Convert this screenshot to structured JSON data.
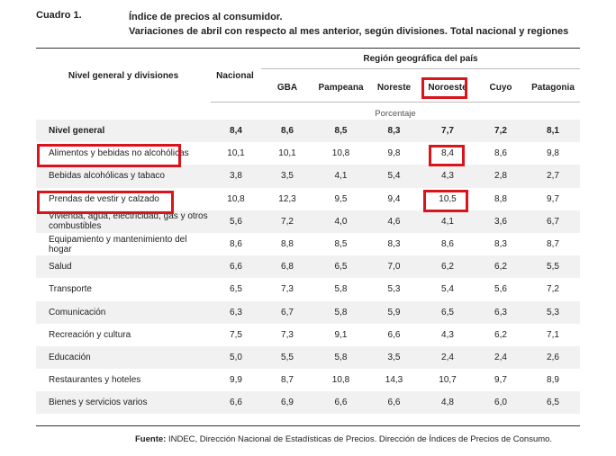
{
  "header": {
    "label": "Cuadro 1.",
    "title_line1": "Índice de precios al consumidor.",
    "title_line2": "Variaciones de abril con respecto al mes anterior, según divisiones. Total nacional y regiones"
  },
  "columns": {
    "row_header": "Nivel general y divisiones",
    "national": "Nacional",
    "region_group": "Región geográfica del país",
    "regions": [
      "GBA",
      "Pampeana",
      "Noreste",
      "Noroeste",
      "Cuyo",
      "Patagonia"
    ]
  },
  "unit": "Porcentaje",
  "rows": [
    {
      "label": "Nivel general",
      "values": [
        "8,4",
        "8,6",
        "8,5",
        "8,3",
        "7,7",
        "7,2",
        "8,1"
      ]
    },
    {
      "label": "Alimentos y bebidas no alcohólicas",
      "values": [
        "10,1",
        "10,1",
        "10,8",
        "9,8",
        "8,4",
        "8,6",
        "9,8"
      ]
    },
    {
      "label": "Bebidas alcohólicas y tabaco",
      "values": [
        "3,8",
        "3,5",
        "4,1",
        "5,4",
        "4,3",
        "2,8",
        "2,7"
      ]
    },
    {
      "label": "Prendas de vestir y calzado",
      "values": [
        "10,8",
        "12,3",
        "9,5",
        "9,4",
        "10,5",
        "8,8",
        "9,7"
      ]
    },
    {
      "label": "Vivienda, agua, electricidad, gas y otros combustibles",
      "values": [
        "5,6",
        "7,2",
        "4,0",
        "4,6",
        "4,1",
        "3,6",
        "6,7"
      ]
    },
    {
      "label": "Equipamiento y mantenimiento del hogar",
      "values": [
        "8,6",
        "8,8",
        "8,5",
        "8,3",
        "8,6",
        "8,3",
        "8,7"
      ]
    },
    {
      "label": "Salud",
      "values": [
        "6,6",
        "6,8",
        "6,5",
        "7,0",
        "6,2",
        "6,2",
        "5,5"
      ]
    },
    {
      "label": "Transporte",
      "values": [
        "6,5",
        "7,3",
        "5,8",
        "5,3",
        "5,4",
        "5,6",
        "7,2"
      ]
    },
    {
      "label": "Comunicación",
      "values": [
        "6,3",
        "6,7",
        "5,8",
        "5,9",
        "6,5",
        "6,3",
        "5,3"
      ]
    },
    {
      "label": "Recreación y cultura",
      "values": [
        "7,5",
        "7,3",
        "9,1",
        "6,6",
        "4,3",
        "6,2",
        "7,1"
      ]
    },
    {
      "label": "Educación",
      "values": [
        "5,0",
        "5,5",
        "5,8",
        "3,5",
        "2,4",
        "2,4",
        "2,6"
      ]
    },
    {
      "label": "Restaurantes y hoteles",
      "values": [
        "9,9",
        "8,7",
        "10,8",
        "14,3",
        "10,7",
        "9,7",
        "8,9"
      ]
    },
    {
      "label": "Bienes y servicios varios",
      "values": [
        "6,6",
        "6,9",
        "6,6",
        "6,6",
        "4,8",
        "6,0",
        "6,5"
      ]
    }
  ],
  "footer": {
    "label": "Fuente:",
    "text": "INDEC, Dirección Nacional de Estadísticas de Precios. Dirección de Índices de Precios de Consumo."
  },
  "highlight_color": "#d9141c"
}
